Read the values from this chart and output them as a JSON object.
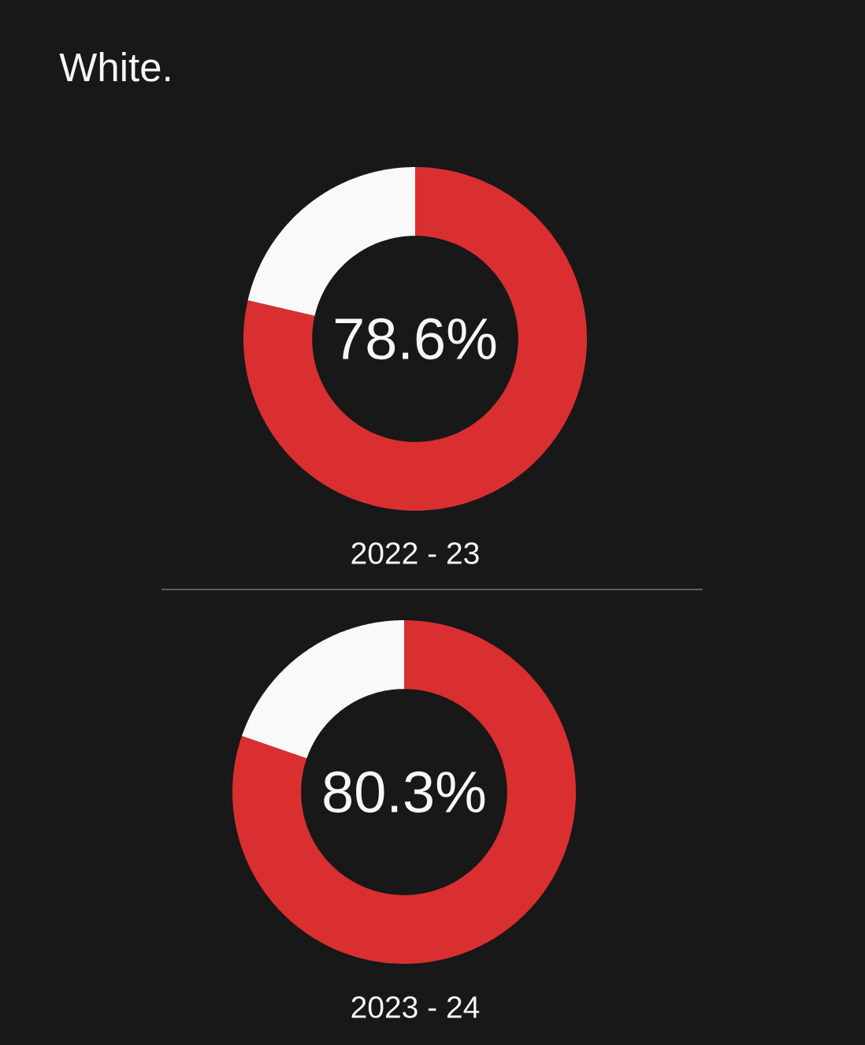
{
  "chart_data": [
    {
      "type": "donut",
      "title": "White.",
      "categories": [
        null,
        null
      ],
      "values": [
        78.6,
        21.4
      ],
      "colors": [
        "#d92f30",
        "#f9f9f9"
      ],
      "value_labels": [
        "78.6%",
        null
      ],
      "xlabel": "2022 - 23"
    },
    {
      "type": "donut",
      "categories": [
        null,
        null
      ],
      "values": [
        80.3,
        19.7
      ],
      "colors": [
        "#d92f30",
        "#f9f9f9"
      ],
      "value_labels": [
        "80.3%",
        null
      ],
      "xlabel": "2023 - 24"
    }
  ]
}
